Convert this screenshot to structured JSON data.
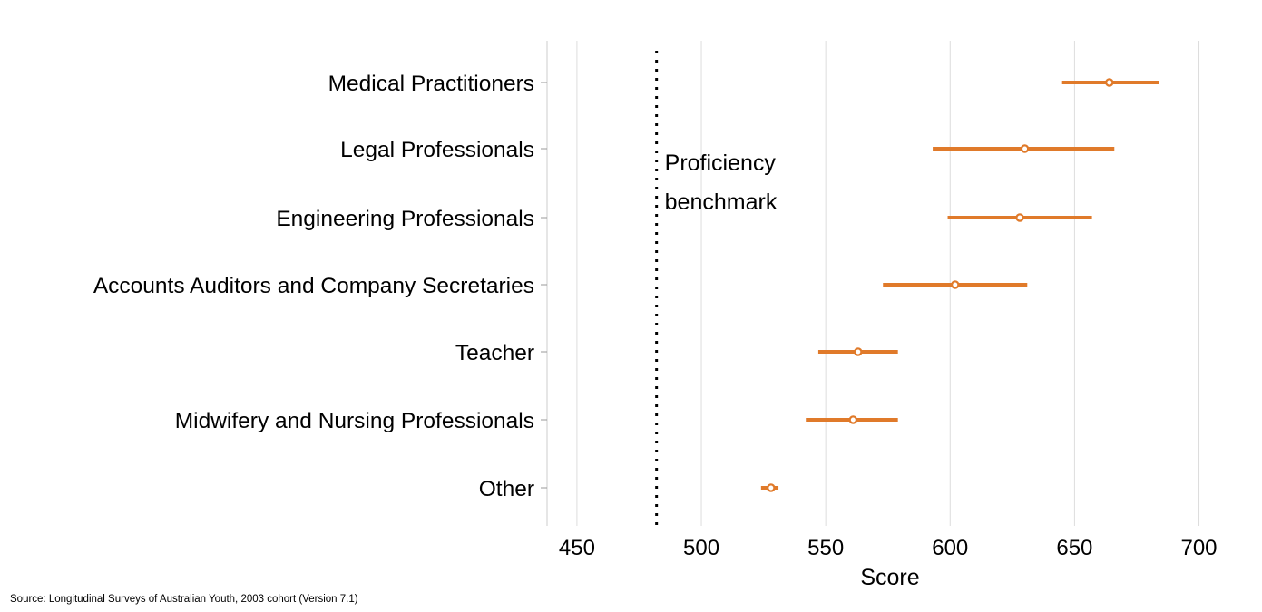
{
  "chart_data": {
    "type": "scatter",
    "orientation": "horizontal",
    "style": "point-with-interval",
    "title": "",
    "xlabel": "Score",
    "ylabel": "",
    "xlim": [
      438,
      702
    ],
    "xticks": [
      450,
      500,
      550,
      600,
      650,
      700
    ],
    "grid": "vertical",
    "categories": [
      "Medical Practitioners",
      "Legal Professionals",
      "Engineering Professionals",
      "Accounts Auditors and Company Secretaries",
      "Teacher",
      "Midwifery and Nursing Professionals",
      "Other"
    ],
    "estimates": [
      664,
      630,
      628,
      602,
      563,
      561,
      528
    ],
    "lower": [
      645,
      593,
      599,
      573,
      547,
      542,
      524
    ],
    "upper": [
      684,
      666,
      657,
      631,
      579,
      579,
      531
    ],
    "benchmark": {
      "value": 482,
      "label_lines": [
        "Proficiency",
        "benchmark"
      ],
      "style": "dotted"
    },
    "colors": {
      "series": "#E07A2A",
      "grid": "#dddddd",
      "axis": "#cccccc",
      "text": "#000000"
    }
  },
  "source_text": "Source: Longitudinal Surveys of Australian Youth, 2003 cohort (Version 7.1)"
}
